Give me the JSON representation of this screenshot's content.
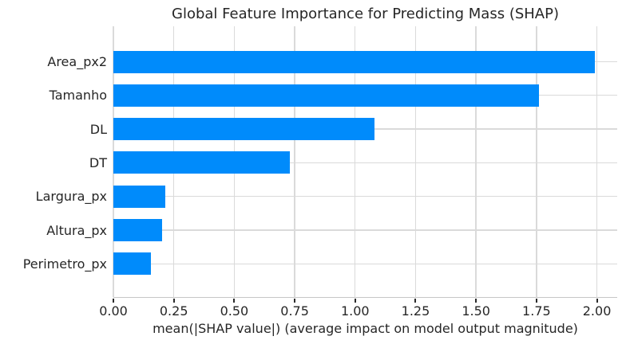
{
  "chart_data": {
    "type": "bar",
    "orientation": "horizontal",
    "title": "Global Feature Importance for Predicting Mass (SHAP)",
    "xlabel": "mean(|SHAP value|) (average impact on model output magnitude)",
    "ylabel": "",
    "categories": [
      "Area_px2",
      "Tamanho",
      "DL",
      "DT",
      "Largura_px",
      "Altura_px",
      "Perimetro_px"
    ],
    "values": [
      1.99,
      1.76,
      1.08,
      0.73,
      0.215,
      0.2,
      0.155
    ],
    "xticks": [
      0,
      0.25,
      0.5,
      0.75,
      1.0,
      1.25,
      1.5,
      1.75,
      2.0
    ],
    "xtick_labels": [
      "0.00",
      "0.25",
      "0.50",
      "0.75",
      "1.00",
      "1.25",
      "1.50",
      "1.75",
      "2.00"
    ],
    "xlim": [
      0,
      2.084
    ],
    "grid": true,
    "legend": false,
    "colors": {
      "bar": "#008bfb",
      "grid": "#dadada",
      "axis_line": "#c6c6c6",
      "tick_mark": "#2b2b2b",
      "text": "#262626"
    }
  }
}
